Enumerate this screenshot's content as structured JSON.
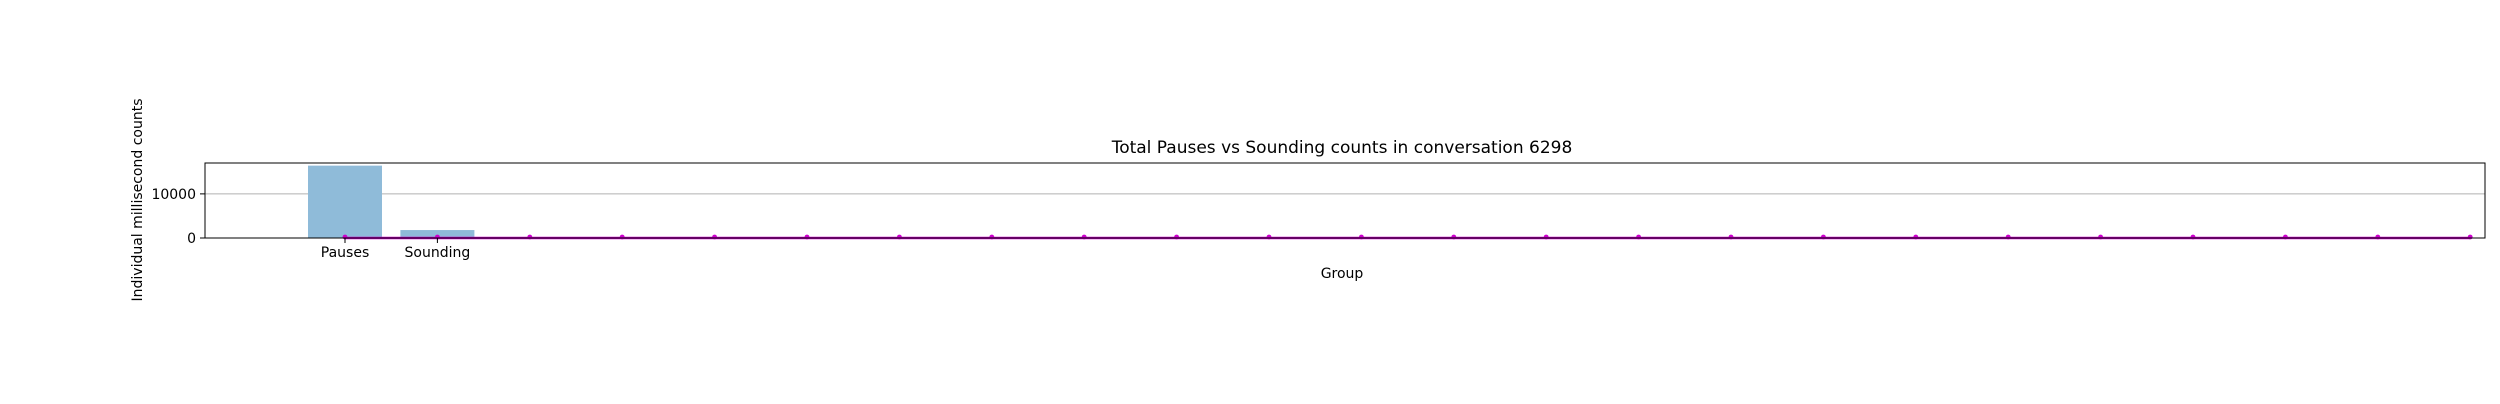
{
  "chart_data": {
    "type": "bar",
    "title": "Total Pauses vs Sounding counts in conversation 6298",
    "xlabel": "Group",
    "ylabel": "Individual millisecond counts",
    "categories": [
      "Pauses",
      "Sounding"
    ],
    "values": [
      16400,
      1800
    ],
    "ylim": [
      0,
      17000
    ],
    "yticks": [
      0,
      10000
    ],
    "grid": "y",
    "bar_color": "#8fbbd9",
    "overlay_line": {
      "color": "#cc00cc",
      "values": [
        0,
        0,
        0,
        0,
        0,
        0,
        0,
        0,
        0,
        0,
        0,
        0,
        0,
        0,
        0,
        0,
        0,
        0,
        0,
        0,
        0,
        0,
        0,
        0
      ]
    }
  }
}
